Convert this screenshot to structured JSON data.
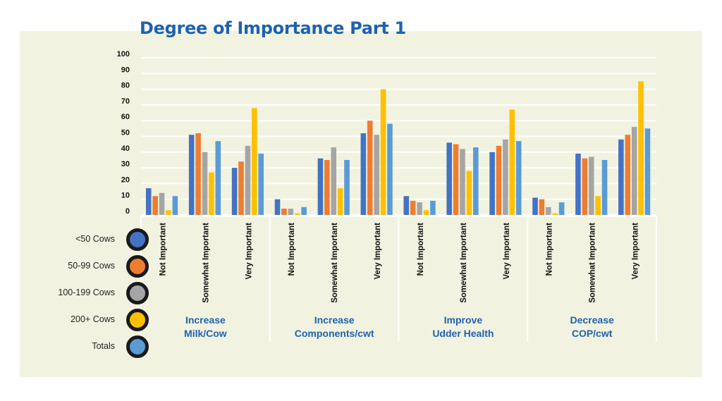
{
  "colors": {
    "background_panel": "#f1f3e0",
    "title": "#1f62ad",
    "group_label": "#1f62ad",
    "grid": "#ffffff",
    "lt50": "#4472c4",
    "c50_99": "#ed7d31",
    "c100_199": "#a5a5a5",
    "c200plus": "#ffc000",
    "totals": "#5b9bd5"
  },
  "chart_data": {
    "type": "bar",
    "title": "Degree of Importance Part 1",
    "xlabel": "",
    "ylabel": "",
    "ylim": [
      0,
      100
    ],
    "yticks": [
      0,
      10,
      20,
      30,
      40,
      50,
      60,
      70,
      80,
      90,
      100
    ],
    "grid": true,
    "legend_placement": "left",
    "groups": [
      {
        "label_line1": "Increase",
        "label_line2": "Milk/Cow"
      },
      {
        "label_line1": "Increase",
        "label_line2": "Components/cwt"
      },
      {
        "label_line1": "Improve",
        "label_line2": "Udder Health"
      },
      {
        "label_line1": "Decrease",
        "label_line2": "COP/cwt"
      }
    ],
    "subcategories": [
      "Not Important",
      "Somewhat Important",
      "Very Important"
    ],
    "series": [
      {
        "name": "<50 Cows",
        "color": "#4472c4",
        "values": [
          17,
          51,
          30,
          10,
          36,
          52,
          12,
          46,
          40,
          11,
          39,
          48
        ]
      },
      {
        "name": "50-99 Cows",
        "color": "#ed7d31",
        "values": [
          12,
          52,
          34,
          4,
          35,
          60,
          9,
          45,
          44,
          10,
          36,
          51
        ]
      },
      {
        "name": "100-199 Cows",
        "color": "#a5a5a5",
        "values": [
          14,
          40,
          44,
          4,
          43,
          51,
          8,
          42,
          48,
          5,
          37,
          56
        ]
      },
      {
        "name": "200+ Cows",
        "color": "#ffc000",
        "values": [
          3,
          27,
          68,
          1,
          17,
          80,
          3,
          28,
          67,
          1,
          12,
          85
        ]
      },
      {
        "name": "Totals",
        "color": "#5b9bd5",
        "values": [
          12,
          47,
          39,
          5,
          35,
          58,
          9,
          43,
          47,
          8,
          35,
          55
        ]
      }
    ]
  }
}
